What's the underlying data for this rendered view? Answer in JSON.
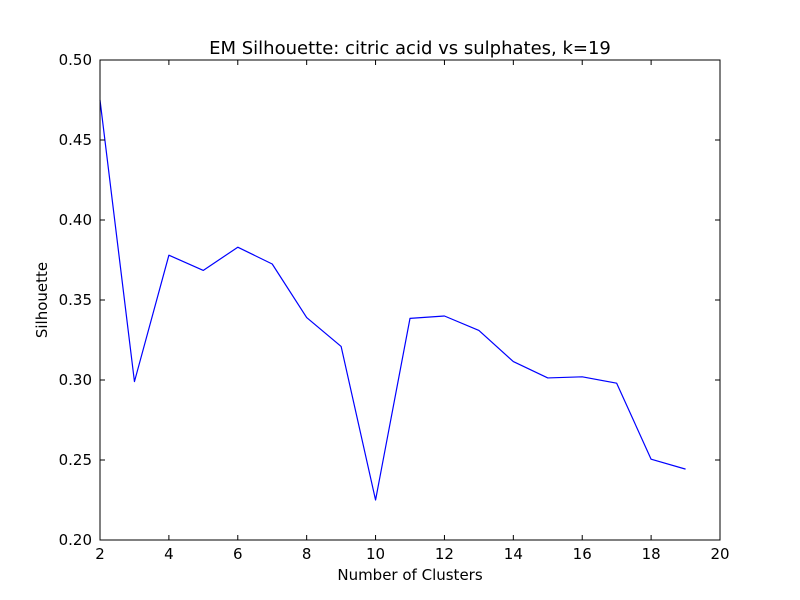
{
  "chart_data": {
    "type": "line",
    "title": "EM Silhouette: citric acid vs sulphates, k=19",
    "xlabel": "Number of Clusters",
    "ylabel": "Silhouette",
    "xlim": [
      2,
      20
    ],
    "ylim": [
      0.2,
      0.5
    ],
    "xticks": [
      2,
      4,
      6,
      8,
      10,
      12,
      14,
      16,
      18,
      20
    ],
    "yticks": [
      0.2,
      0.25,
      0.3,
      0.35,
      0.4,
      0.45,
      0.5
    ],
    "xtick_labels": [
      "2",
      "4",
      "6",
      "8",
      "10",
      "12",
      "14",
      "16",
      "18",
      "20"
    ],
    "ytick_labels": [
      "0.20",
      "0.25",
      "0.30",
      "0.35",
      "0.40",
      "0.45",
      "0.50"
    ],
    "grid": false,
    "series": [
      {
        "color": "#0000ff",
        "x": [
          2,
          3,
          4,
          5,
          6,
          7,
          8,
          9,
          10,
          11,
          12,
          13,
          14,
          15,
          16,
          17,
          18,
          19
        ],
        "y": [
          0.475,
          0.299,
          0.378,
          0.3685,
          0.383,
          0.3725,
          0.339,
          0.321,
          0.225,
          0.3385,
          0.34,
          0.331,
          0.3115,
          0.3013,
          0.302,
          0.298,
          0.2505,
          0.2443
        ]
      }
    ]
  }
}
